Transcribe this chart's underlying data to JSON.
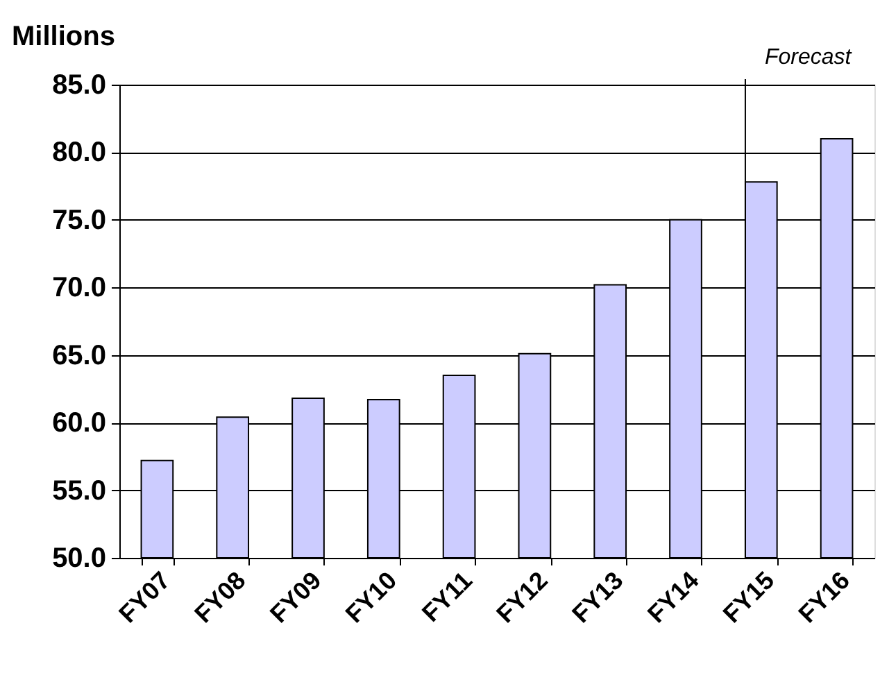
{
  "chart_data": {
    "type": "bar",
    "ylabel": "Millions",
    "categories": [
      "FY07",
      "FY08",
      "FY09",
      "FY10",
      "FY11",
      "FY12",
      "FY13",
      "FY14",
      "FY15",
      "FY16"
    ],
    "series": [
      {
        "color": "#ccccff",
        "values": [
          57.2,
          60.4,
          61.8,
          61.7,
          63.5,
          65.1,
          70.2,
          75.0,
          77.8,
          81.0
        ]
      }
    ],
    "ylim": [
      50,
      85
    ],
    "yticks": [
      {
        "value": 50,
        "label": "50.0"
      },
      {
        "value": 55,
        "label": "55.0"
      },
      {
        "value": 60,
        "label": "60.0"
      },
      {
        "value": 65,
        "label": "65.0"
      },
      {
        "value": 70,
        "label": "70.0"
      },
      {
        "value": 75,
        "label": "75.0"
      },
      {
        "value": 80,
        "label": "80.0"
      },
      {
        "value": 85,
        "label": "85.0"
      }
    ],
    "grid": "y",
    "ref_lines": [
      {
        "axis": "x",
        "value": "FY15",
        "label": "Forecast"
      }
    ]
  }
}
